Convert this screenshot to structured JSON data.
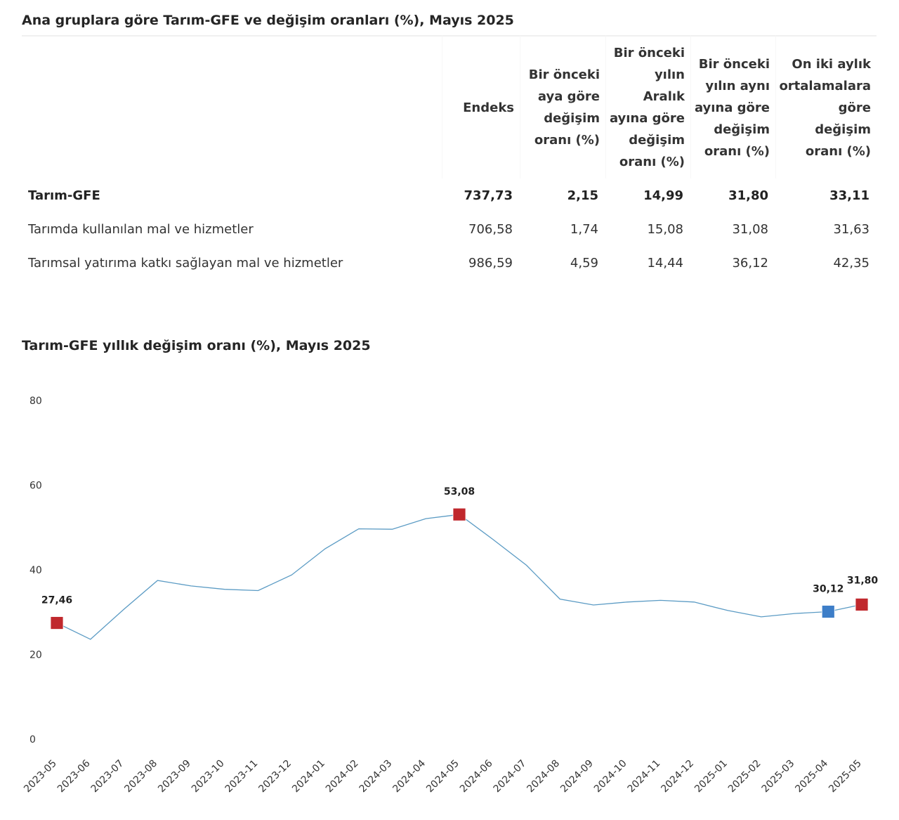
{
  "table": {
    "title": "Ana gruplara göre Tarım-GFE ve değişim oranları (%), Mayıs 2025",
    "headers": [
      "",
      "Endeks",
      "Bir önceki aya göre değişim oranı (%)",
      "Bir önceki yılın Aralık ayına göre değişim oranı (%)",
      "Bir önceki yılın aynı ayına göre değişim oranı (%)",
      "On iki aylık ortalamalara göre değişim oranı (%)"
    ],
    "rows": [
      {
        "name": "Tarım-GFE",
        "endeks": "737,73",
        "aylik": "2,15",
        "aralik": "14,99",
        "yillik": "31,80",
        "ortalama": "33,11"
      },
      {
        "name": "Tarımda kullanılan mal ve hizmetler",
        "endeks": "706,58",
        "aylik": "1,74",
        "aralik": "15,08",
        "yillik": "31,08",
        "ortalama": "31,63"
      },
      {
        "name": "Tarımsal yatırıma katkı sağlayan mal ve hizmetler",
        "endeks": "986,59",
        "aylik": "4,59",
        "aralik": "14,44",
        "yillik": "36,12",
        "ortalama": "42,35"
      }
    ]
  },
  "chart_data": {
    "type": "line",
    "title": "Tarım-GFE yıllık değişim oranı (%), Mayıs 2025",
    "xlabel": "",
    "ylabel": "",
    "ylim": [
      0,
      80
    ],
    "yticks": [
      0,
      20,
      40,
      60,
      80
    ],
    "grid": false,
    "line_color": "#5b9bc4",
    "categories": [
      "2023-05",
      "2023-06",
      "2023-07",
      "2023-08",
      "2023-09",
      "2023-10",
      "2023-11",
      "2023-12",
      "2024-01",
      "2024-02",
      "2024-03",
      "2024-04",
      "2024-05",
      "2024-06",
      "2024-07",
      "2024-08",
      "2024-09",
      "2024-10",
      "2024-11",
      "2024-12",
      "2025-01",
      "2025-02",
      "2025-03",
      "2025-04",
      "2025-05"
    ],
    "values": [
      27.46,
      23.6,
      30.7,
      37.5,
      36.2,
      35.4,
      35.1,
      38.8,
      45.0,
      49.7,
      49.6,
      52.1,
      53.08,
      47.2,
      41.1,
      33.1,
      31.7,
      32.4,
      32.8,
      32.4,
      30.4,
      28.9,
      29.7,
      30.12,
      31.8
    ],
    "markers": [
      {
        "index": 0,
        "label": "27,46",
        "color": "#c0282d"
      },
      {
        "index": 12,
        "label": "53,08",
        "color": "#c0282d"
      },
      {
        "index": 23,
        "label": "30,12",
        "color": "#3d7ec8"
      },
      {
        "index": 24,
        "label": "31,80",
        "color": "#c0282d"
      }
    ]
  }
}
